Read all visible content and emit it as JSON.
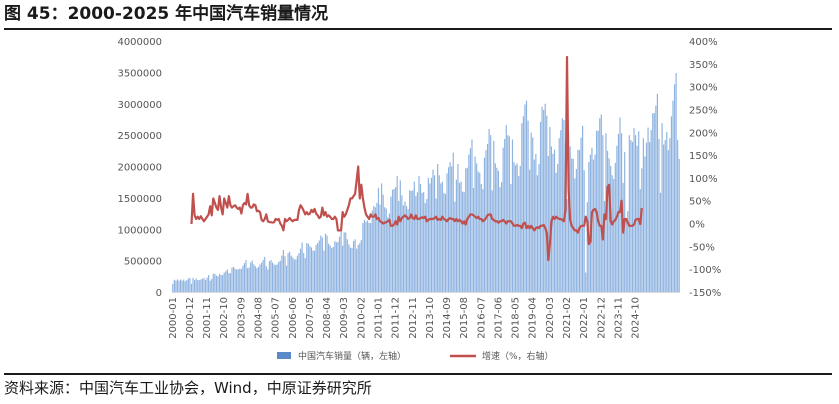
{
  "figure": {
    "title": "图 45：2000-2025 年中国汽车销量情况",
    "source": "资料来源：中国汽车工业协会，Wind，中原证券研究所"
  },
  "colors": {
    "bar": "#8FB3E0",
    "bar_legend": "#5B8ACB",
    "line": "#C0504D",
    "rule": "#1A1A1A"
  },
  "chart_data": {
    "type": "bar+line",
    "x_tick_labels": [
      "2000-01",
      "2000-12",
      "2001-11",
      "2002-10",
      "2003-09",
      "2004-08",
      "2005-07",
      "2006-06",
      "2007-05",
      "2008-04",
      "2009-03",
      "2010-02",
      "2011-01",
      "2011-12",
      "2012-11",
      "2013-10",
      "2014-09",
      "2015-08",
      "2016-07",
      "2017-06",
      "2018-05",
      "2019-04",
      "2020-03",
      "2021-02",
      "2022-01",
      "2022-12",
      "2023-11",
      "2024-10"
    ],
    "y_left": {
      "ylim": [
        0,
        4000000
      ],
      "ticks": [
        "0",
        "500000",
        "1000000",
        "1500000",
        "2000000",
        "2500000",
        "3000000",
        "3500000",
        "4000000"
      ]
    },
    "y_right": {
      "ylim": [
        -150,
        400
      ],
      "ticks": [
        "-150%",
        "-100%",
        "-50%",
        "0%",
        "50%",
        "100%",
        "150%",
        "200%",
        "250%",
        "300%",
        "350%",
        "400%"
      ]
    },
    "series": [
      {
        "name": "中国汽车销量（辆，左轴）",
        "kind": "bar",
        "axis": "left",
        "x_start": "2000-01",
        "values": [
          130000,
          195000,
          180000,
          200000,
          180000,
          200000,
          180000,
          200000,
          170000,
          190000,
          215000,
          225000,
          130000,
          225000,
          190000,
          215000,
          190000,
          190000,
          200000,
          210000,
          225000,
          190000,
          230000,
          270000,
          180000,
          210000,
          290000,
          290000,
          260000,
          250000,
          290000,
          270000,
          270000,
          310000,
          330000,
          360000,
          300000,
          300000,
          390000,
          400000,
          370000,
          360000,
          360000,
          370000,
          370000,
          420000,
          460000,
          510000,
          380000,
          390000,
          470000,
          500000,
          440000,
          410000,
          380000,
          400000,
          440000,
          470000,
          510000,
          560000,
          410000,
          360000,
          490000,
          510000,
          470000,
          440000,
          430000,
          440000,
          480000,
          500000,
          580000,
          670000,
          570000,
          420000,
          620000,
          640000,
          580000,
          550000,
          520000,
          520000,
          580000,
          620000,
          690000,
          790000,
          620000,
          540000,
          780000,
          770000,
          730000,
          710000,
          660000,
          660000,
          750000,
          780000,
          820000,
          900000,
          870000,
          660000,
          930000,
          900000,
          770000,
          740000,
          700000,
          720000,
          810000,
          790000,
          800000,
          880000,
          1050000,
          740000,
          950000,
          950000,
          840000,
          760000,
          710000,
          700000,
          810000,
          840000,
          690000,
          750000,
          780000,
          830000,
          1100000,
          1150000,
          1120000,
          1140000,
          1100000,
          1100000,
          1300000,
          1370000,
          1350000,
          1420000,
          1660000,
          1390000,
          1730000,
          1550000,
          1350000,
          1330000,
          1190000,
          1250000,
          1520000,
          1630000,
          1640000,
          1670000,
          1850000,
          1450000,
          1780000,
          1540000,
          1380000,
          1440000,
          1370000,
          1320000,
          1620000,
          1610000,
          1620000,
          1760000,
          1530000,
          1590000,
          1850000,
          1720000,
          1580000,
          1590000,
          1420000,
          1480000,
          1820000,
          1730000,
          1820000,
          1950000,
          1860000,
          1490000,
          2040000,
          1860000,
          1730000,
          1760000,
          1580000,
          1560000,
          1890000,
          1990000,
          2070000,
          2000000,
          2220000,
          1440000,
          1790000,
          2040000,
          1740000,
          1760000,
          1600000,
          1590000,
          1970000,
          1980000,
          2190000,
          2290000,
          2430000,
          1660000,
          2160000,
          2050000,
          1920000,
          1900000,
          1720000,
          1640000,
          2140000,
          2260000,
          2360000,
          2600000,
          2500000,
          1620000,
          2410000,
          2050000,
          1980000,
          1930000,
          1670000,
          1750000,
          2300000,
          2440000,
          2660000,
          2500000,
          2480000,
          1720000,
          2430000,
          2070000,
          2020000,
          2050000,
          1850000,
          2010000,
          2690000,
          2800000,
          2990000,
          3050000,
          2730000,
          1950000,
          2540000,
          2460000,
          2110000,
          2200000,
          1860000,
          2040000,
          2710000,
          2950000,
          2900000,
          3000000,
          2810000,
          2170000,
          2630000,
          2320000,
          2200000,
          2270000,
          1900000,
          2040000,
          2450000,
          2580000,
          2770000,
          2740000,
          2370000,
          1480000,
          2520000,
          2320000,
          2130000,
          2120000,
          1810000,
          1960000,
          2270000,
          2260000,
          2460000,
          2650000,
          1940000,
          310000,
          1430000,
          2070000,
          2190000,
          2300000,
          2110000,
          2190000,
          2570000,
          2570000,
          2770000,
          2830000,
          2500000,
          1450000,
          2530000,
          2250000,
          2130000,
          2010000,
          1860000,
          1800000,
          2060000,
          2330000,
          2520000,
          2780000,
          2530000,
          1740000,
          2230000,
          1180000,
          1290000,
          2500000,
          2420000,
          2390000,
          2610000,
          2500000,
          2330000,
          2560000,
          1640000,
          1970000,
          2450000,
          2160000,
          2380000,
          2620000,
          2390000,
          2580000,
          2850000,
          2850000,
          2970000,
          3160000,
          2440000,
          1580000,
          2690000,
          2350000,
          2420000,
          2550000,
          2260000,
          2450000,
          2800000,
          3050000,
          3310000,
          3490000,
          2420000,
          2120000
        ]
      },
      {
        "name": "增速（%，右轴）",
        "kind": "line",
        "axis": "right",
        "x_start": "2001-01",
        "values": [
          -1,
          65,
          18,
          10,
          15,
          10,
          16,
          10,
          5,
          10,
          15,
          20,
          38,
          18,
          55,
          45,
          35,
          30,
          60,
          35,
          20,
          55,
          45,
          35,
          60,
          40,
          35,
          38,
          40,
          35,
          32,
          35,
          22,
          40,
          45,
          42,
          65,
          40,
          35,
          35,
          42,
          40,
          27,
          28,
          25,
          8,
          5,
          10,
          20,
          5,
          3,
          3,
          2,
          3,
          10,
          8,
          10,
          0,
          -5,
          -15,
          10,
          5,
          8,
          12,
          8,
          5,
          8,
          8,
          8,
          30,
          40,
          35,
          28,
          20,
          25,
          20,
          22,
          30,
          25,
          32,
          22,
          18,
          12,
          15,
          35,
          18,
          25,
          15,
          18,
          15,
          10,
          10,
          15,
          10,
          -15,
          -15,
          -15,
          25,
          15,
          20,
          30,
          40,
          55,
          55,
          60,
          65,
          95,
          125,
          55,
          85,
          55,
          35,
          20,
          15,
          10,
          20,
          15,
          15,
          20,
          10,
          12,
          5,
          3,
          0,
          2,
          3,
          5,
          8,
          -5,
          -5,
          -2,
          5,
          -2,
          15,
          5,
          12,
          15,
          18,
          15,
          10,
          12,
          20,
          12,
          10,
          18,
          10,
          10,
          12,
          14,
          12,
          15,
          5,
          8,
          10,
          10,
          10,
          12,
          15,
          8,
          10,
          8,
          15,
          10,
          8,
          5,
          10,
          12,
          10,
          10,
          5,
          10,
          5,
          8,
          5,
          0,
          5,
          -2,
          10,
          15,
          20,
          20,
          18,
          15,
          12,
          15,
          10,
          10,
          5,
          8,
          12,
          18,
          20,
          20,
          10,
          8,
          5,
          5,
          2,
          5,
          5,
          8,
          5,
          0,
          5,
          5,
          5,
          0,
          -5,
          -5,
          -3,
          -5,
          -5,
          -10,
          0,
          2,
          -10,
          -5,
          -10,
          -5,
          -10,
          -15,
          -10,
          -8,
          -10,
          -5,
          -5,
          -3,
          -10,
          -20,
          -80,
          -45,
          5,
          15,
          10,
          15,
          12,
          10,
          10,
          8,
          5,
          30,
          365,
          75,
          8,
          -5,
          -10,
          -15,
          -15,
          -20,
          -10,
          -5,
          -5,
          -5,
          15,
          5,
          -45,
          -40,
          25,
          30,
          32,
          25,
          5,
          -5,
          -5,
          -35,
          20,
          10,
          80,
          85,
          5,
          -2,
          5,
          8,
          15,
          25,
          25,
          50,
          -20,
          10,
          10,
          2,
          -5,
          -5,
          -5,
          -2,
          8,
          10,
          10,
          -1,
          34
        ]
      }
    ],
    "legend_position": "bottom-center"
  }
}
